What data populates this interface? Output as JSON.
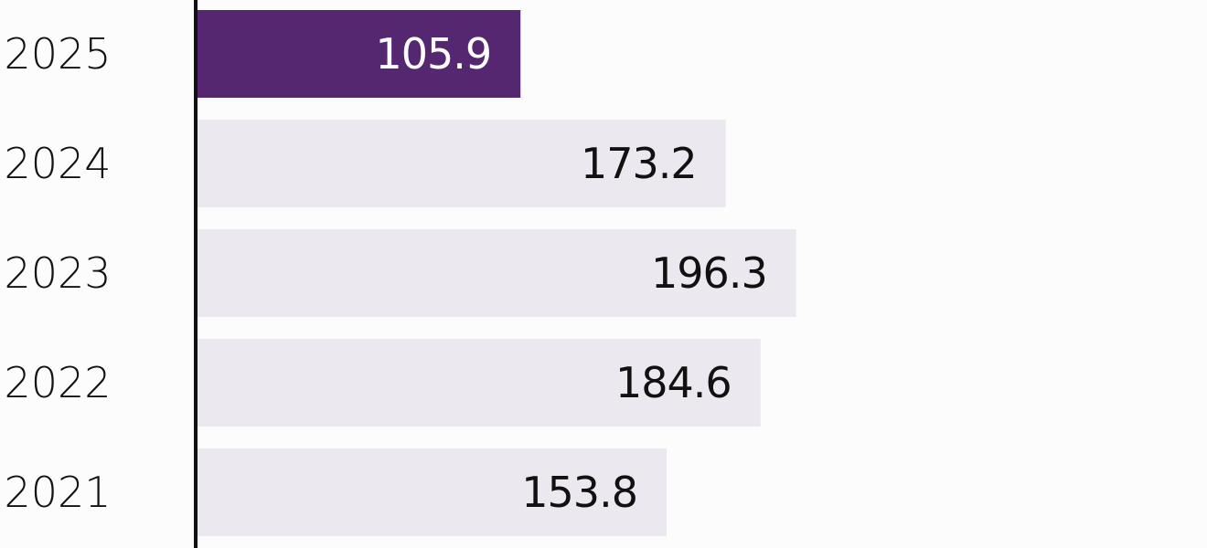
{
  "chart_data": {
    "type": "bar",
    "orientation": "horizontal",
    "categories": [
      "2025",
      "2024",
      "2023",
      "2022",
      "2021"
    ],
    "values": [
      105.9,
      173.2,
      196.3,
      184.6,
      153.8
    ],
    "value_labels": [
      "105.9",
      "173.2",
      "196.3",
      "184.6",
      "153.8"
    ],
    "highlighted_category": "2025",
    "xlim": [
      0,
      331
    ],
    "grid": false,
    "colors": {
      "highlight_bar": "#552771",
      "default_bar": "#ece8ef",
      "highlight_text": "#ffffff",
      "default_text": "#111111",
      "axis": "#111111"
    }
  }
}
